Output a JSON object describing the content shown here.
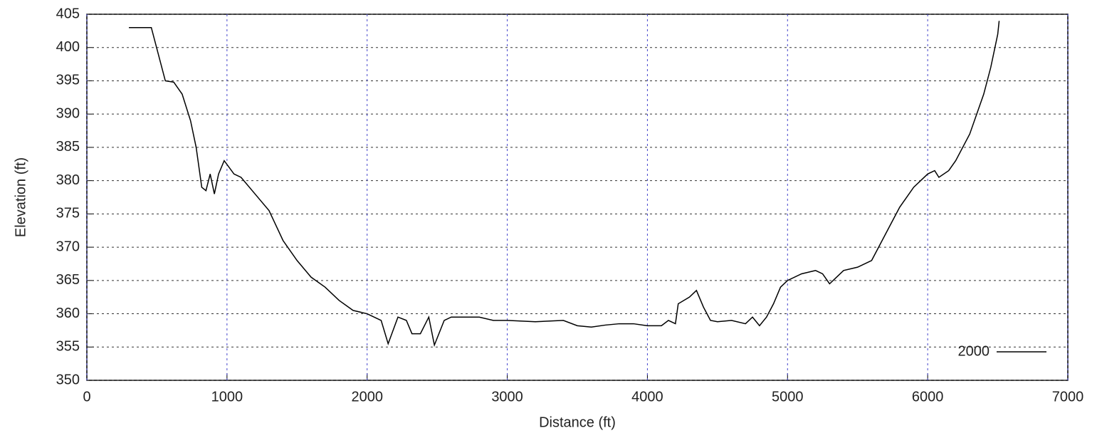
{
  "chart_data": {
    "type": "line",
    "xlabel": "Distance (ft)",
    "ylabel": "Elevation (ft)",
    "x": [
      300,
      460,
      560,
      620,
      680,
      740,
      780,
      820,
      850,
      880,
      910,
      940,
      980,
      1050,
      1100,
      1200,
      1300,
      1400,
      1500,
      1600,
      1700,
      1800,
      1900,
      2000,
      2100,
      2150,
      2220,
      2280,
      2320,
      2380,
      2440,
      2480,
      2550,
      2600,
      2700,
      2800,
      2900,
      3000,
      3200,
      3400,
      3500,
      3600,
      3700,
      3800,
      3900,
      4000,
      4100,
      4150,
      4200,
      4220,
      4300,
      4350,
      4400,
      4450,
      4500,
      4600,
      4700,
      4750,
      4800,
      4850,
      4900,
      4950,
      5000,
      5100,
      5200,
      5250,
      5300,
      5350,
      5400,
      5500,
      5600,
      5700,
      5800,
      5900,
      6000,
      6050,
      6080,
      6150,
      6200,
      6300,
      6400,
      6450,
      6500,
      6510
    ],
    "series": [
      {
        "name": "2000",
        "color": "#000000",
        "values": [
          403,
          403,
          395,
          394.8,
          393,
          389,
          385,
          379,
          378.5,
          381,
          378,
          381,
          383,
          381,
          380.5,
          378,
          375.5,
          371,
          368,
          365.5,
          364,
          362,
          360.5,
          360,
          359,
          355.5,
          359.5,
          359,
          357,
          357,
          359.5,
          355.3,
          359,
          359.5,
          359.5,
          359.5,
          359,
          359,
          358.8,
          359,
          358.2,
          358,
          358.3,
          358.5,
          358.5,
          358.2,
          358.2,
          359,
          358.5,
          361.5,
          362.5,
          363.5,
          361,
          359,
          358.8,
          359,
          358.5,
          359.5,
          358.2,
          359.5,
          361.5,
          364,
          365,
          366,
          366.5,
          366,
          364.5,
          365.5,
          366.5,
          367,
          368,
          372,
          376,
          379,
          381,
          381.5,
          380.5,
          381.5,
          383,
          387,
          393,
          397,
          402,
          404
        ]
      }
    ],
    "xlim": [
      0,
      7000
    ],
    "xticks": [
      0,
      1000,
      2000,
      3000,
      4000,
      5000,
      6000,
      7000
    ],
    "ylim": [
      350,
      405
    ],
    "yticks": [
      350,
      355,
      360,
      365,
      370,
      375,
      380,
      385,
      390,
      395,
      400,
      405
    ],
    "grid": true,
    "legend": "lower right"
  }
}
